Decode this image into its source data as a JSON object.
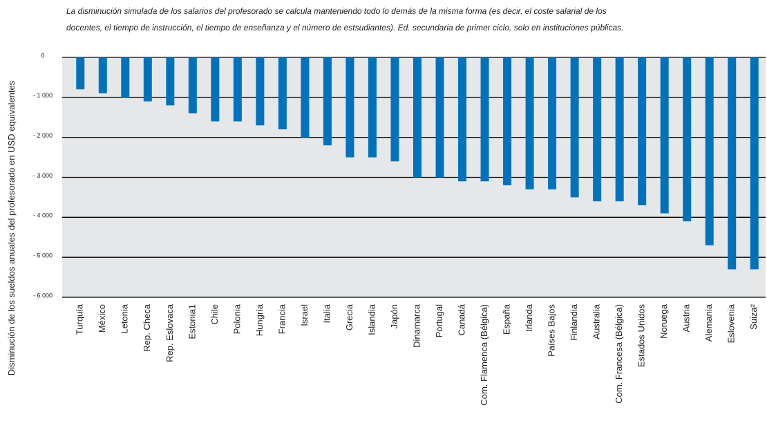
{
  "chart_data": {
    "type": "bar",
    "title": [
      "La disminución simulada de los salarios del profesorado se calcula manteniendo todo lo demás de la misma forma (es decir, el coste salarial de los",
      "docentes, el tiempo de instrucción, el tiempo de enseñanza y el número de estsudiantes). Ed. secundaria de primer ciclo, solo en instituciones públicas."
    ],
    "ylabel": "Disminución de los sueldos anuales del profesorado en USD equivalentes",
    "categories": [
      "Turquía",
      "México",
      "Letonia",
      "Rep. Checa",
      "Rep. Eslovaca",
      "Estonia1",
      "Chile",
      "Polonia",
      "Hungría",
      "Francia",
      "Israel",
      "Italia",
      "Grecia",
      "Islandia",
      "Japón",
      "Dinamarca",
      "Portugal",
      "Canadá",
      "Com. Flamenca (Bélgica)",
      "España",
      "Irlanda",
      "Países Bajos",
      "Finlandia",
      "Australia",
      "Com. Francesa (Bélgica)",
      "Estados Unidos",
      "Noruega",
      "Austria",
      "Alemania",
      "Eslovenia",
      "Suiza²"
    ],
    "values": [
      -800,
      -900,
      -1000,
      -1100,
      -1200,
      -1400,
      -1600,
      -1600,
      -1700,
      -1800,
      -2000,
      -2200,
      -2500,
      -2500,
      -2600,
      -3000,
      -3000,
      -3100,
      -3100,
      -3200,
      -3300,
      -3300,
      -3500,
      -3600,
      -3600,
      -3700,
      -3900,
      -4100,
      -4700,
      -5300,
      -5300
    ],
    "color": "#0072bc",
    "ylim": [
      -6000,
      0
    ],
    "yticks": [
      0,
      {
        "value": -1000,
        "label": "- 1 000"
      },
      {
        "value": -2000,
        "label": "- 2 000"
      },
      {
        "value": -3000,
        "label": "- 3 000"
      },
      {
        "value": -4000,
        "label": "- 4 000"
      },
      {
        "value": -5000,
        "label": "- 5 000"
      },
      {
        "value": -6000,
        "label": "- 6 000"
      }
    ],
    "grid": true
  }
}
